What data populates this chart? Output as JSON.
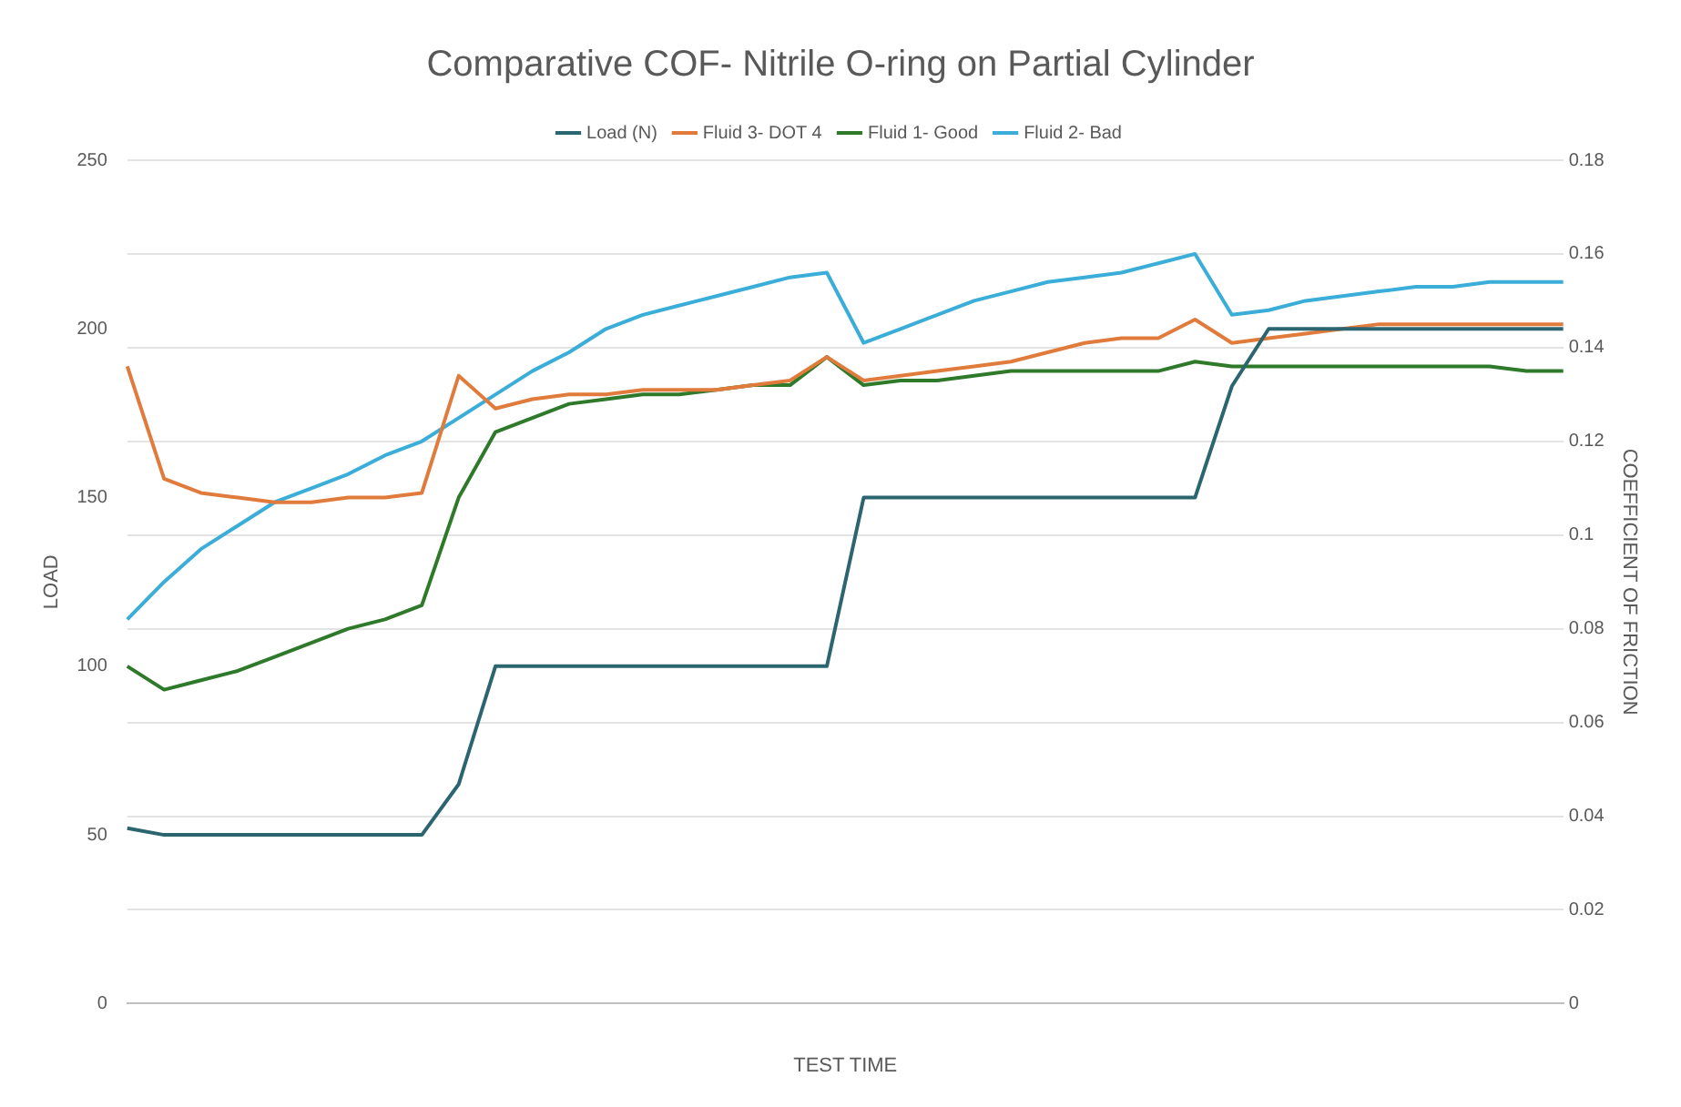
{
  "chart_data": {
    "type": "line",
    "title": "Comparative COF- Nitrile O-ring on Partial Cylinder",
    "xlabel": "TEST TIME",
    "ylabel": "LOAD",
    "y2label": "COEFFICIENT OF FRICTION",
    "legend": "top",
    "grid": "y",
    "marker": "none",
    "line_style": "solid",
    "categories": [
      null,
      null,
      null,
      null,
      null,
      null,
      null,
      null,
      null,
      null,
      null,
      null,
      null,
      null,
      null,
      null,
      null,
      null,
      null,
      null,
      null,
      null,
      null,
      null,
      null,
      null,
      null,
      null,
      null,
      null,
      null,
      null,
      null,
      null,
      null,
      null,
      null,
      null,
      null,
      null
    ],
    "ylim": [
      0,
      250
    ],
    "yticks": [
      0,
      50,
      100,
      150,
      200,
      250
    ],
    "y2lim": [
      0,
      0.18
    ],
    "y2ticks": [
      0,
      0.02,
      0.04,
      0.06,
      0.08,
      0.1,
      0.12,
      0.14,
      0.16,
      0.18
    ],
    "series": [
      {
        "name": "Load (N)",
        "color": "#2b6570",
        "values": [
          52,
          50,
          50,
          50,
          50,
          50,
          50,
          50,
          50,
          65,
          100,
          100,
          100,
          100,
          100,
          100,
          100,
          100,
          100,
          100,
          150,
          150,
          150,
          150,
          150,
          150,
          150,
          150,
          150,
          150,
          183,
          200,
          200,
          200,
          200,
          200,
          200,
          200,
          200,
          200
        ]
      },
      {
        "name": "Fluid 3- DOT 4",
        "color": "#e07b3c",
        "axis": "y2",
        "values": [
          0.136,
          0.112,
          0.109,
          0.108,
          0.107,
          0.107,
          0.108,
          0.108,
          0.109,
          0.134,
          0.127,
          0.129,
          0.13,
          0.13,
          0.131,
          0.131,
          0.131,
          0.132,
          0.133,
          0.138,
          0.133,
          0.134,
          0.135,
          0.136,
          0.137,
          0.139,
          0.141,
          0.142,
          0.142,
          0.146,
          0.141,
          0.142,
          0.143,
          0.144,
          0.145,
          0.145,
          0.145,
          0.145,
          0.145,
          0.145
        ]
      },
      {
        "name": "Fluid 1- Good",
        "color": "#2f7a2a",
        "axis": "y2",
        "values": [
          0.072,
          0.067,
          0.069,
          0.071,
          0.074,
          0.077,
          0.08,
          0.082,
          0.085,
          0.108,
          0.122,
          0.125,
          0.128,
          0.129,
          0.13,
          0.13,
          0.131,
          0.132,
          0.132,
          0.138,
          0.132,
          0.133,
          0.133,
          0.134,
          0.135,
          0.135,
          0.135,
          0.135,
          0.135,
          0.137,
          0.136,
          0.136,
          0.136,
          0.136,
          0.136,
          0.136,
          0.136,
          0.136,
          0.135,
          0.135
        ]
      },
      {
        "name": "Fluid 2- Bad",
        "color": "#3aaed8",
        "axis": "y2",
        "values": [
          0.082,
          0.09,
          0.097,
          0.102,
          0.107,
          0.11,
          0.113,
          0.117,
          0.12,
          0.125,
          0.13,
          0.135,
          0.139,
          0.144,
          0.147,
          0.149,
          0.151,
          0.153,
          0.155,
          0.156,
          0.141,
          0.144,
          0.147,
          0.15,
          0.152,
          0.154,
          0.155,
          0.156,
          0.158,
          0.16,
          0.147,
          0.148,
          0.15,
          0.151,
          0.152,
          0.153,
          0.153,
          0.154,
          0.154,
          0.154
        ]
      }
    ]
  }
}
